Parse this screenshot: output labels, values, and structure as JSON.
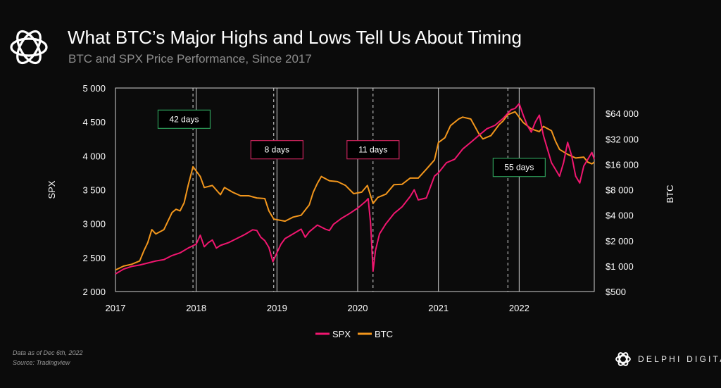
{
  "header": {
    "title": "What BTC’s Major Highs and Lows Tell Us About Timing",
    "subtitle": "BTC and SPX Price Performance, Since 2017"
  },
  "footer": {
    "note_line1": "Data as of Dec 6th, 2022",
    "note_line2": "Source: Tradingview",
    "brand": "DELPHI DIGITAL"
  },
  "colors": {
    "background": "#0b0b0b",
    "spx": "#f0166f",
    "btc": "#f2961c",
    "annotation_green": "#2e9e5a",
    "annotation_red": "#c8245c",
    "grid": "#d0d0d0",
    "reference_line": "#dddddd"
  },
  "chart_data": {
    "type": "line",
    "x_ticks": [
      "2017",
      "2018",
      "2019",
      "2020",
      "2021",
      "2022"
    ],
    "x_range": [
      2017.0,
      2022.93
    ],
    "y_left": {
      "label": "SPX",
      "range": [
        2000,
        5000
      ],
      "ticks": [
        "2 000",
        "2 500",
        "3 000",
        "3 500",
        "4 000",
        "4 500",
        "5 000"
      ],
      "tick_values": [
        2000,
        2500,
        3000,
        3500,
        4000,
        4500,
        5000
      ]
    },
    "y_right": {
      "label": "BTC",
      "scale": "log",
      "range": [
        500,
        128000
      ],
      "ticks": [
        "$500",
        "$1 000",
        "$2 000",
        "$4 000",
        "$8 000",
        "$16 000",
        "$32 000",
        "$64 000"
      ],
      "tick_values": [
        500,
        1000,
        2000,
        4000,
        8000,
        16000,
        32000,
        64000
      ]
    },
    "grid": "vertical at year ticks",
    "legend": {
      "position": "bottom-center",
      "entries": [
        "SPX",
        "BTC"
      ]
    },
    "reference_lines_x": [
      2017.96,
      2018.96,
      2020.19,
      2021.86
    ],
    "annotations": [
      {
        "text": "42 days",
        "x": 2017.85,
        "y_spx": 4540,
        "style": "green"
      },
      {
        "text": "8 days",
        "x": 2019.0,
        "y_spx": 4090,
        "style": "red"
      },
      {
        "text": "11 days",
        "x": 2020.19,
        "y_spx": 4090,
        "style": "red"
      },
      {
        "text": "55 days",
        "x": 2022.0,
        "y_spx": 3830,
        "style": "green"
      }
    ],
    "series": [
      {
        "name": "SPX",
        "axis": "left",
        "x": [
          2017.0,
          2017.1,
          2017.2,
          2017.3,
          2017.4,
          2017.5,
          2017.6,
          2017.7,
          2017.8,
          2017.9,
          2018.0,
          2018.05,
          2018.1,
          2018.15,
          2018.2,
          2018.25,
          2018.3,
          2018.4,
          2018.5,
          2018.6,
          2018.7,
          2018.75,
          2018.8,
          2018.85,
          2018.9,
          2018.95,
          2018.98,
          2019.05,
          2019.1,
          2019.2,
          2019.3,
          2019.35,
          2019.4,
          2019.5,
          2019.6,
          2019.65,
          2019.7,
          2019.8,
          2019.9,
          2020.0,
          2020.1,
          2020.13,
          2020.16,
          2020.19,
          2020.22,
          2020.27,
          2020.35,
          2020.45,
          2020.55,
          2020.65,
          2020.7,
          2020.75,
          2020.85,
          2020.95,
          2021.0,
          2021.1,
          2021.2,
          2021.3,
          2021.4,
          2021.5,
          2021.6,
          2021.7,
          2021.8,
          2021.9,
          2021.95,
          2022.0,
          2022.05,
          2022.1,
          2022.15,
          2022.2,
          2022.25,
          2022.3,
          2022.35,
          2022.4,
          2022.45,
          2022.5,
          2022.55,
          2022.6,
          2022.65,
          2022.7,
          2022.75,
          2022.8,
          2022.85,
          2022.9,
          2022.93
        ],
        "values": [
          2260,
          2330,
          2370,
          2390,
          2420,
          2450,
          2470,
          2530,
          2570,
          2640,
          2700,
          2830,
          2660,
          2720,
          2760,
          2640,
          2680,
          2720,
          2780,
          2840,
          2910,
          2900,
          2800,
          2750,
          2650,
          2440,
          2520,
          2700,
          2780,
          2850,
          2920,
          2800,
          2880,
          2980,
          2920,
          2900,
          2990,
          3080,
          3150,
          3230,
          3330,
          3370,
          3000,
          2300,
          2600,
          2850,
          3000,
          3150,
          3250,
          3400,
          3500,
          3350,
          3380,
          3700,
          3750,
          3900,
          3950,
          4100,
          4200,
          4300,
          4400,
          4450,
          4550,
          4680,
          4700,
          4770,
          4600,
          4450,
          4350,
          4500,
          4600,
          4300,
          4100,
          3900,
          3800,
          3700,
          3900,
          4200,
          4000,
          3700,
          3600,
          3850,
          3950,
          4050,
          3950
        ]
      },
      {
        "name": "BTC",
        "axis": "right",
        "x": [
          2017.0,
          2017.1,
          2017.2,
          2017.3,
          2017.35,
          2017.4,
          2017.45,
          2017.5,
          2017.6,
          2017.7,
          2017.75,
          2017.8,
          2017.85,
          2017.9,
          2017.96,
          2018.05,
          2018.1,
          2018.2,
          2018.3,
          2018.35,
          2018.45,
          2018.55,
          2018.65,
          2018.75,
          2018.85,
          2018.9,
          2018.96,
          2019.1,
          2019.2,
          2019.3,
          2019.4,
          2019.45,
          2019.5,
          2019.55,
          2019.65,
          2019.75,
          2019.85,
          2019.95,
          2020.05,
          2020.12,
          2020.19,
          2020.25,
          2020.35,
          2020.45,
          2020.55,
          2020.65,
          2020.75,
          2020.85,
          2020.95,
          2021.0,
          2021.08,
          2021.15,
          2021.25,
          2021.3,
          2021.4,
          2021.5,
          2021.55,
          2021.65,
          2021.75,
          2021.8,
          2021.86,
          2021.95,
          2022.05,
          2022.15,
          2022.25,
          2022.3,
          2022.4,
          2022.45,
          2022.5,
          2022.6,
          2022.7,
          2022.8,
          2022.85,
          2022.9,
          2022.93
        ],
        "values": [
          900,
          1000,
          1050,
          1150,
          1500,
          1900,
          2700,
          2400,
          2700,
          4300,
          4700,
          4500,
          5600,
          9000,
          15000,
          11500,
          8500,
          9000,
          7000,
          8500,
          7500,
          6800,
          6800,
          6400,
          6300,
          4500,
          3600,
          3400,
          3800,
          4000,
          5300,
          7500,
          9500,
          11500,
          10200,
          10000,
          9000,
          7200,
          7500,
          9000,
          5500,
          6500,
          7100,
          9200,
          9300,
          11000,
          11000,
          14000,
          18000,
          29000,
          33000,
          46000,
          55000,
          58000,
          55000,
          37000,
          32000,
          35000,
          47000,
          52000,
          62000,
          67000,
          50000,
          42000,
          39000,
          45000,
          40000,
          30000,
          24000,
          21000,
          19000,
          19500,
          17000,
          16200,
          17000
        ]
      }
    ]
  }
}
